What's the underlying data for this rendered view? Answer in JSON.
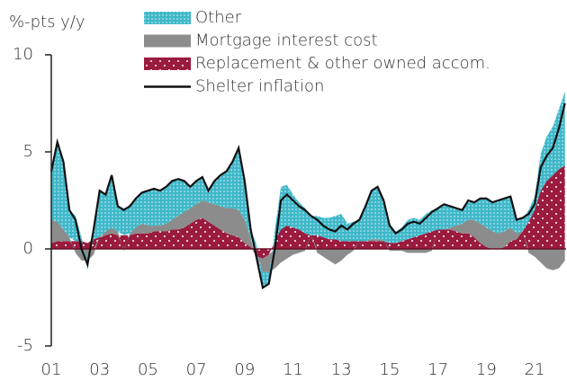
{
  "chart_data": {
    "type": "stacked_area",
    "y_label": "%-pts y/y",
    "x": [
      2001.0,
      2001.25,
      2001.5,
      2001.75,
      2002.0,
      2002.25,
      2002.5,
      2002.75,
      2003.0,
      2003.25,
      2003.5,
      2003.75,
      2004.0,
      2004.25,
      2004.5,
      2004.75,
      2005.0,
      2005.25,
      2005.5,
      2005.75,
      2006.0,
      2006.25,
      2006.5,
      2006.75,
      2007.0,
      2007.25,
      2007.5,
      2007.75,
      2008.0,
      2008.25,
      2008.5,
      2008.75,
      2009.0,
      2009.25,
      2009.5,
      2009.75,
      2010.0,
      2010.25,
      2010.5,
      2010.75,
      2011.0,
      2011.25,
      2011.5,
      2011.75,
      2012.0,
      2012.25,
      2012.5,
      2012.75,
      2013.0,
      2013.25,
      2013.5,
      2013.75,
      2014.0,
      2014.25,
      2014.5,
      2014.75,
      2015.0,
      2015.25,
      2015.5,
      2015.75,
      2016.0,
      2016.25,
      2016.5,
      2016.75,
      2017.0,
      2017.25,
      2017.5,
      2017.75,
      2018.0,
      2018.25,
      2018.5,
      2018.75,
      2019.0,
      2019.25,
      2019.5,
      2019.75,
      2020.0,
      2020.25,
      2020.5,
      2020.75,
      2021.0,
      2021.25,
      2021.5,
      2021.75,
      2022.0,
      2022.25
    ],
    "series": [
      {
        "name": "Other",
        "kind": "area",
        "color": "#3fb8c9",
        "pattern": true,
        "values": [
          2.5,
          4.1,
          3.5,
          1.4,
          1.3,
          0.2,
          -0.5,
          0.8,
          2.4,
          1.9,
          2.7,
          1.3,
          1.4,
          1.4,
          1.5,
          1.6,
          1.8,
          1.9,
          1.8,
          1.9,
          2.0,
          1.9,
          1.6,
          1.1,
          1.2,
          1.2,
          0.6,
          1.2,
          1.6,
          1.9,
          2.4,
          3.2,
          2.0,
          0.4,
          0.2,
          -0.8,
          -0.6,
          0.6,
          2.2,
          2.1,
          1.7,
          1.4,
          1.3,
          1.0,
          1.0,
          1.0,
          1.1,
          1.2,
          1.4,
          0.9,
          1.0,
          1.1,
          1.8,
          2.5,
          2.7,
          2.1,
          1.0,
          0.6,
          0.7,
          1.0,
          1.0,
          0.8,
          1.0,
          1.1,
          1.1,
          1.3,
          1.1,
          0.9,
          0.7,
          1.0,
          0.9,
          1.3,
          1.5,
          1.5,
          1.7,
          1.7,
          1.6,
          0.7,
          0.7,
          0.6,
          0.7,
          1.9,
          2.3,
          2.5,
          3.1,
          3.8
        ]
      },
      {
        "name": "Mortgage interest cost",
        "kind": "area",
        "color": "#8c8c8c",
        "pattern": false,
        "values": [
          1.2,
          1.0,
          0.6,
          0.2,
          -0.2,
          -0.6,
          -0.6,
          -0.3,
          0,
          0.2,
          0.3,
          0.2,
          -0.1,
          0.1,
          0.3,
          0.5,
          0.4,
          0.3,
          0.3,
          0.4,
          0.5,
          0.7,
          0.8,
          0.8,
          0.8,
          0.9,
          1.0,
          1.1,
          1.2,
          1.3,
          1.4,
          1.4,
          1.2,
          0.5,
          -0.3,
          -0.7,
          -0.9,
          -1.0,
          -0.7,
          -0.5,
          -0.3,
          -0.2,
          -0.1,
          0.0,
          -0.2,
          -0.4,
          -0.6,
          -0.8,
          -0.6,
          -0.3,
          -0.1,
          0.0,
          0.0,
          0.1,
          0.1,
          0.0,
          -0.1,
          -0.1,
          -0.1,
          -0.2,
          -0.2,
          -0.2,
          -0.2,
          -0.1,
          0.0,
          0.0,
          0.1,
          0.3,
          0.5,
          0.7,
          0.9,
          1.0,
          1.0,
          0.9,
          0.8,
          0.8,
          0.7,
          0.3,
          0.0,
          -0.2,
          -0.4,
          -0.7,
          -1.0,
          -1.1,
          -1.0,
          -0.6
        ]
      },
      {
        "name": "Replacement & other owned accom.",
        "kind": "area",
        "color": "#9b1b3f",
        "pattern": true,
        "values": [
          0.3,
          0.4,
          0.4,
          0.4,
          0.4,
          0.4,
          0.3,
          0.5,
          0.6,
          0.7,
          0.8,
          0.7,
          0.7,
          0.7,
          0.8,
          0.8,
          0.8,
          0.9,
          0.9,
          0.9,
          1.0,
          1.0,
          1.1,
          1.3,
          1.5,
          1.6,
          1.4,
          1.2,
          1.0,
          0.8,
          0.7,
          0.6,
          0.3,
          0.1,
          -0.4,
          -0.5,
          -0.3,
          0.4,
          1.0,
          1.2,
          1.1,
          1.0,
          0.8,
          0.7,
          0.7,
          0.6,
          0.5,
          0.5,
          0.4,
          0.4,
          0.4,
          0.4,
          0.4,
          0.4,
          0.4,
          0.4,
          0.3,
          0.3,
          0.4,
          0.5,
          0.6,
          0.7,
          0.8,
          0.9,
          1.0,
          1.0,
          1.0,
          0.9,
          0.8,
          0.8,
          0.6,
          0.3,
          0.1,
          0.0,
          0.0,
          0.1,
          0.4,
          0.5,
          0.9,
          1.4,
          2.0,
          3.0,
          3.5,
          3.8,
          4.1,
          4.3
        ]
      },
      {
        "name": "Shelter inflation",
        "kind": "line",
        "color": "#111111",
        "values": [
          4.0,
          5.5,
          4.5,
          2.0,
          1.5,
          0.0,
          -0.8,
          1.0,
          3.0,
          2.8,
          3.8,
          2.2,
          2.0,
          2.2,
          2.6,
          2.9,
          3.0,
          3.1,
          3.0,
          3.2,
          3.5,
          3.6,
          3.5,
          3.2,
          3.5,
          3.7,
          3.0,
          3.5,
          3.8,
          4.0,
          4.5,
          5.2,
          3.5,
          1.0,
          -0.5,
          -2.0,
          -1.8,
          0.0,
          2.5,
          2.8,
          2.5,
          2.2,
          2.0,
          1.7,
          1.5,
          1.2,
          1.0,
          0.9,
          1.2,
          1.0,
          1.3,
          1.5,
          2.2,
          3.0,
          3.2,
          2.5,
          1.2,
          0.8,
          1.0,
          1.3,
          1.4,
          1.3,
          1.6,
          1.9,
          2.1,
          2.3,
          2.2,
          2.1,
          2.0,
          2.5,
          2.4,
          2.6,
          2.6,
          2.4,
          2.5,
          2.6,
          2.7,
          1.5,
          1.6,
          1.8,
          2.3,
          4.2,
          4.8,
          5.2,
          6.2,
          7.5
        ]
      }
    ],
    "xlim": [
      2001,
      2022.3
    ],
    "ylim": [
      -5,
      10
    ],
    "xticks": [
      {
        "value": 2001,
        "label": "01"
      },
      {
        "value": 2003,
        "label": "03"
      },
      {
        "value": 2005,
        "label": "05"
      },
      {
        "value": 2007,
        "label": "07"
      },
      {
        "value": 2009,
        "label": "09"
      },
      {
        "value": 2011,
        "label": "11"
      },
      {
        "value": 2013,
        "label": "13"
      },
      {
        "value": 2015,
        "label": "15"
      },
      {
        "value": 2017,
        "label": "17"
      },
      {
        "value": 2019,
        "label": "19"
      },
      {
        "value": 2021,
        "label": "21"
      }
    ],
    "yticks": [
      -5,
      0,
      5,
      10
    ],
    "grid": false,
    "legend": "top"
  }
}
